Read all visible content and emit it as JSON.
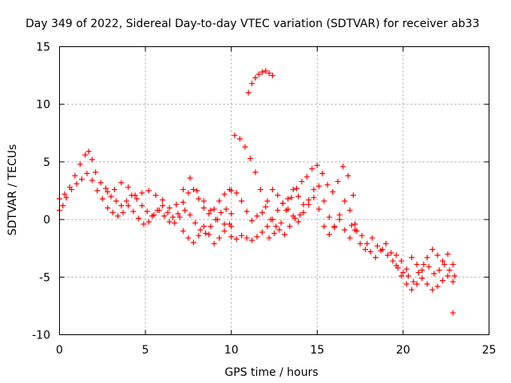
{
  "chart_data": {
    "type": "scatter",
    "title": "Day 349 of 2022, Sidereal Day-to-day VTEC variation (SDTVAR) for receiver ab33",
    "xlabel": "GPS time / hours",
    "ylabel": "SDTVAR / TECUs",
    "xlim": [
      0,
      25
    ],
    "ylim": [
      -10,
      15
    ],
    "xticks": [
      0,
      5,
      10,
      15,
      20,
      25
    ],
    "yticks": [
      -10,
      -5,
      0,
      5,
      10,
      15
    ],
    "grid": true,
    "marker": "+",
    "color": "#ff0000",
    "series": [
      {
        "name": "SDTVAR trace 1",
        "x": [
          0.0,
          0.3,
          0.6,
          0.9,
          1.2,
          1.5,
          1.7,
          1.9,
          2.1,
          2.4,
          2.7,
          3.0,
          3.3,
          3.6,
          3.9,
          4.2,
          4.5,
          4.8,
          5.1,
          5.4,
          5.7,
          6.0,
          6.3,
          6.6,
          6.9,
          7.2,
          7.5,
          7.8,
          8.1,
          8.4,
          8.7,
          9.0,
          9.3,
          9.6,
          9.9
        ],
        "y": [
          1.8,
          2.2,
          2.8,
          3.8,
          4.8,
          5.6,
          5.9,
          5.2,
          4.1,
          3.2,
          2.7,
          2.0,
          1.6,
          1.2,
          1.6,
          2.1,
          1.8,
          1.2,
          0.7,
          0.3,
          0.8,
          1.2,
          0.6,
          0.2,
          0.5,
          1.5,
          2.3,
          2.6,
          1.8,
          1.0,
          0.5,
          0.9,
          1.6,
          2.2,
          2.6
        ]
      },
      {
        "name": "SDTVAR trace 2",
        "x": [
          0.0,
          0.2,
          0.4,
          0.7,
          1.0,
          1.3,
          1.6,
          1.9,
          2.2,
          2.5,
          2.8,
          3.1,
          3.4,
          3.7,
          4.0,
          4.3,
          4.6,
          4.9,
          5.2,
          5.5,
          5.8,
          6.1,
          6.4,
          6.7,
          7.0,
          7.3,
          7.6,
          7.9,
          8.2,
          8.5,
          8.8,
          9.1,
          9.4,
          9.7,
          10.0
        ],
        "y": [
          0.8,
          1.2,
          1.9,
          2.6,
          3.1,
          3.5,
          4.0,
          3.4,
          2.5,
          1.8,
          1.0,
          0.6,
          0.3,
          0.6,
          1.2,
          0.7,
          0.1,
          -0.4,
          -0.2,
          0.4,
          0.8,
          0.3,
          -0.2,
          -0.3,
          0.2,
          0.8,
          0.4,
          -0.3,
          -0.9,
          -1.2,
          -0.6,
          0.0,
          0.6,
          0.9,
          0.5
        ]
      },
      {
        "name": "SDTVAR trace 3",
        "x": [
          2.8,
          3.2,
          3.6,
          4.0,
          4.4,
          4.8,
          5.2,
          5.6,
          6.0,
          6.4,
          6.8,
          7.2,
          7.6,
          8.0,
          8.4,
          8.8,
          9.2,
          9.6,
          10.0
        ],
        "y": [
          2.4,
          2.6,
          3.2,
          2.8,
          2.1,
          2.3,
          2.5,
          2.1,
          1.7,
          1.0,
          1.3,
          2.6,
          3.6,
          2.5,
          1.6,
          0.8,
          0.0,
          -0.4,
          -0.6
        ]
      },
      {
        "name": "SDTVAR trace 4",
        "x": [
          7.2,
          7.5,
          7.8,
          8.1,
          8.4,
          8.7,
          9.0,
          9.3,
          9.6,
          9.9
        ],
        "y": [
          -1.0,
          -1.6,
          -2.0,
          -1.4,
          -0.6,
          -1.3,
          -2.1,
          -1.6,
          -1.0,
          -0.4
        ]
      },
      {
        "name": "SDTVAR trace 5",
        "x": [
          10.2,
          10.5,
          10.8,
          11.1,
          11.4,
          11.7,
          12.0,
          12.3,
          12.6,
          12.9,
          13.2,
          13.5,
          13.8,
          14.1,
          14.4,
          14.7,
          15.0,
          15.3,
          15.6,
          15.9,
          16.2,
          16.5,
          16.8,
          17.1
        ],
        "y": [
          7.3,
          7.0,
          6.3,
          5.3,
          4.1,
          2.6,
          1.1,
          0.0,
          -0.6,
          -0.3,
          0.8,
          1.9,
          2.7,
          3.3,
          3.7,
          4.4,
          4.7,
          4.0,
          3.0,
          2.4,
          3.3,
          4.6,
          3.8,
          2.1
        ]
      },
      {
        "name": "SDTVAR trace 6",
        "x": [
          10.0,
          10.3,
          10.6,
          10.9,
          11.2,
          11.5,
          11.8,
          12.1,
          12.4,
          12.7,
          13.0,
          13.3,
          13.6,
          13.9,
          14.2,
          14.5,
          14.8,
          15.1,
          15.4,
          15.7,
          16.0,
          16.3,
          16.6,
          16.9,
          17.2
        ],
        "y": [
          2.5,
          2.3,
          1.6,
          0.7,
          -0.1,
          0.3,
          0.6,
          1.6,
          2.6,
          2.1,
          1.4,
          1.8,
          2.6,
          2.0,
          1.3,
          1.7,
          2.6,
          2.9,
          1.6,
          0.2,
          -0.6,
          0.4,
          1.6,
          0.8,
          -0.4
        ]
      },
      {
        "name": "SDTVAR trace 7",
        "x": [
          10.0,
          10.3,
          10.6,
          10.9,
          11.2,
          11.5,
          11.8,
          12.1,
          12.4,
          12.7,
          13.0,
          13.3,
          13.6,
          13.9,
          14.2,
          14.5,
          14.8,
          15.1,
          15.4,
          15.7,
          16.0,
          16.3,
          16.6,
          16.9
        ],
        "y": [
          -1.5,
          -1.7,
          -1.4,
          -1.6,
          -1.8,
          -1.5,
          -1.1,
          -0.6,
          0.0,
          0.8,
          1.4,
          0.9,
          0.3,
          -0.2,
          0.6,
          1.3,
          1.9,
          0.9,
          -0.6,
          -1.3,
          -0.7,
          0.0,
          -0.9,
          -1.6
        ]
      },
      {
        "name": "SDTVAR trace 8",
        "x": [
          12.2,
          12.5,
          12.8,
          13.1,
          13.4,
          13.7,
          14.0
        ],
        "y": [
          -1.6,
          -1.2,
          -0.9,
          -1.3,
          -0.6,
          0.1,
          0.4
        ]
      },
      {
        "name": "SDTVAR trace 9",
        "x": [
          11.0,
          11.2,
          11.4,
          11.6,
          11.8,
          12.0,
          12.2,
          12.4
        ],
        "y": [
          11.0,
          11.8,
          12.3,
          12.6,
          12.8,
          12.9,
          12.7,
          12.5
        ]
      },
      {
        "name": "SDTVAR trace 10",
        "x": [
          17.0,
          17.3,
          17.6,
          17.9,
          18.2,
          18.5,
          18.8,
          19.1,
          19.4,
          19.7,
          20.0,
          20.3,
          20.6,
          20.9,
          21.2,
          21.5,
          21.8,
          22.1,
          22.4,
          22.7,
          23.0
        ],
        "y": [
          -0.5,
          -1.0,
          -1.4,
          -2.1,
          -1.6,
          -2.3,
          -2.6,
          -3.1,
          -3.6,
          -4.2,
          -4.6,
          -4.9,
          -5.4,
          -4.6,
          -3.9,
          -4.1,
          -4.7,
          -4.4,
          -3.9,
          -4.4,
          -4.9
        ]
      },
      {
        "name": "SDTVAR trace 11",
        "x": [
          17.2,
          17.5,
          17.8,
          18.1,
          18.4,
          18.7,
          19.0,
          19.3,
          19.6,
          19.9,
          20.2,
          20.5,
          20.8,
          21.1,
          21.4,
          21.7,
          22.0,
          22.3,
          22.6,
          22.9
        ],
        "y": [
          -0.9,
          -2.1,
          -2.6,
          -2.8,
          -3.3,
          -2.7,
          -2.1,
          -2.9,
          -4.0,
          -4.9,
          -5.6,
          -6.1,
          -5.6,
          -5.1,
          -5.6,
          -6.1,
          -5.8,
          -5.3,
          -4.9,
          -5.4
        ]
      },
      {
        "name": "SDTVAR trace 12",
        "x": [
          19.6,
          19.9,
          20.2,
          20.5,
          20.8,
          21.1,
          21.4,
          21.7,
          22.0,
          22.3,
          22.6,
          22.9
        ],
        "y": [
          -3.1,
          -3.6,
          -4.3,
          -3.3,
          -3.9,
          -4.4,
          -3.3,
          -2.6,
          -3.1,
          -3.6,
          -3.0,
          -3.9
        ]
      },
      {
        "name": "SDTVAR trace 13",
        "x": [
          22.9
        ],
        "y": [
          -8.1
        ]
      }
    ]
  }
}
